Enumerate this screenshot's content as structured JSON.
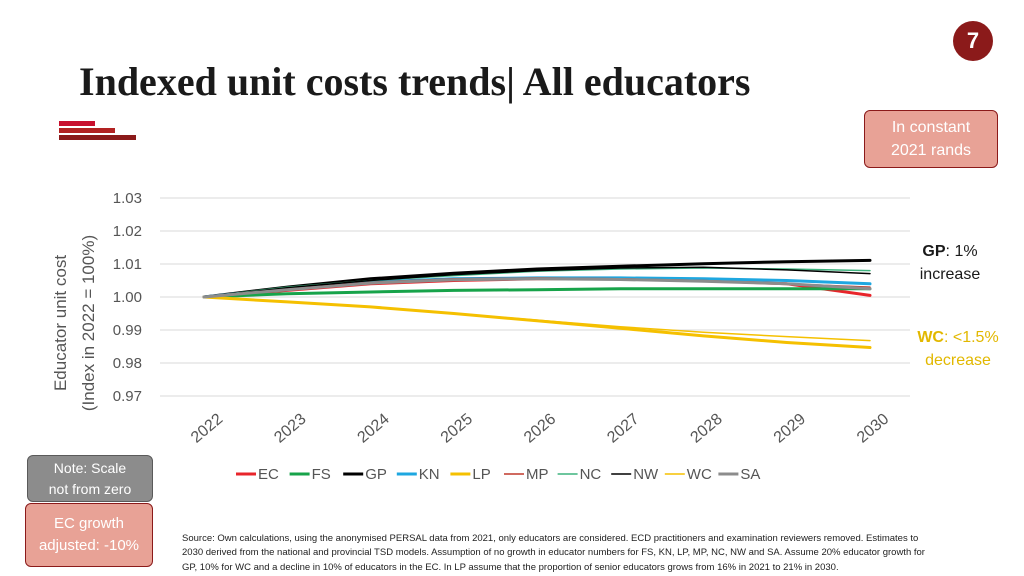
{
  "page": {
    "number": "7",
    "title": "Indexed unit costs trends| All educators",
    "logo_icon": "stacked-bars-logo-icon",
    "badge_rands": [
      "In constant",
      "2021 rands"
    ],
    "note_badge": [
      "Note: Scale",
      "not from zero"
    ],
    "ec_badge": [
      "EC growth",
      "adjusted: -10%"
    ],
    "gp_annotation": {
      "label": "GP",
      "rest": ": 1%",
      "line2": "increase"
    },
    "wc_annotation": {
      "label": "WC",
      "rest": ": <1.5%",
      "line2": "decrease"
    },
    "source_lines": [
      "Source: Own calculations, using the anonymised PERSAL data from 2021, only educators are considered. ECD practitioners and examination reviewers removed. Estimates to",
      "2030 derived from the national and provincial TSD models. Assumption of no growth in educator numbers for FS, KN, LP, MP, NC, NW and SA. Assume 20% educator growth for",
      "GP, 10% for WC and a decline in 10% of educators in the EC. In LP assume that the proportion of senior educators grows from 16% in 2021 to 21% in 2030."
    ],
    "colors": {
      "accent": "#8B1A1A",
      "badge": "#E8A296",
      "note": "#8C8C8C",
      "wc": "#E2B800"
    }
  },
  "chart_data": {
    "type": "line",
    "ylabel": [
      "Educator unit cost",
      "(Index in 2022 = 100%)"
    ],
    "xlabel": "",
    "ylim": [
      0.97,
      1.03
    ],
    "yticks": [
      "0.97",
      "0.98",
      "0.99",
      "1.00",
      "1.01",
      "1.02",
      "1.03"
    ],
    "grid": true,
    "legend": "bottom",
    "categories": [
      "2022",
      "2023",
      "2024",
      "2025",
      "2026",
      "2027",
      "2028",
      "2029",
      "2030"
    ],
    "series": [
      {
        "name": "EC",
        "color": "#E8252B",
        "width": 3,
        "values": [
          1.0,
          1.002,
          1.004,
          1.005,
          1.0055,
          1.0055,
          1.005,
          1.004,
          1.0005
        ]
      },
      {
        "name": "FS",
        "color": "#17A34A",
        "width": 3,
        "values": [
          1.0,
          1.001,
          1.0015,
          1.002,
          1.0022,
          1.0025,
          1.0025,
          1.0025,
          1.0025
        ]
      },
      {
        "name": "GP",
        "color": "#000000",
        "width": 3,
        "values": [
          1.0,
          1.003,
          1.0055,
          1.0072,
          1.0085,
          1.0093,
          1.0101,
          1.0107,
          1.0111
        ]
      },
      {
        "name": "KN",
        "color": "#1EA7E0",
        "width": 3,
        "values": [
          1.0,
          1.0025,
          1.0045,
          1.0055,
          1.0058,
          1.0058,
          1.0055,
          1.005,
          1.004
        ]
      },
      {
        "name": "LP",
        "color": "#F5C000",
        "width": 3,
        "values": [
          1.0,
          0.9985,
          0.997,
          0.995,
          0.9928,
          0.9905,
          0.9882,
          0.9862,
          0.9847
        ]
      },
      {
        "name": "MP",
        "color": "#C0392B",
        "width": 1.5,
        "values": [
          1.0,
          1.0025,
          1.0045,
          1.0055,
          1.0058,
          1.0055,
          1.005,
          1.004,
          1.003
        ]
      },
      {
        "name": "NC",
        "color": "#3FB37F",
        "width": 1.5,
        "values": [
          1.0,
          1.003,
          1.005,
          1.0065,
          1.0078,
          1.0085,
          1.0088,
          1.0085,
          1.008
        ]
      },
      {
        "name": "NW",
        "color": "#000000",
        "width": 1.5,
        "values": [
          1.0,
          1.0028,
          1.005,
          1.0068,
          1.008,
          1.0088,
          1.009,
          1.0082,
          1.0071
        ]
      },
      {
        "name": "WC",
        "color": "#F5C000",
        "width": 1.5,
        "values": [
          1.0,
          0.9985,
          0.997,
          0.995,
          0.993,
          0.991,
          0.9893,
          0.988,
          0.9868
        ]
      },
      {
        "name": "SA",
        "color": "#8C8C8C",
        "width": 3,
        "values": [
          1.0,
          1.0022,
          1.0042,
          1.0052,
          1.0055,
          1.0053,
          1.0048,
          1.004,
          1.0025
        ]
      }
    ]
  }
}
